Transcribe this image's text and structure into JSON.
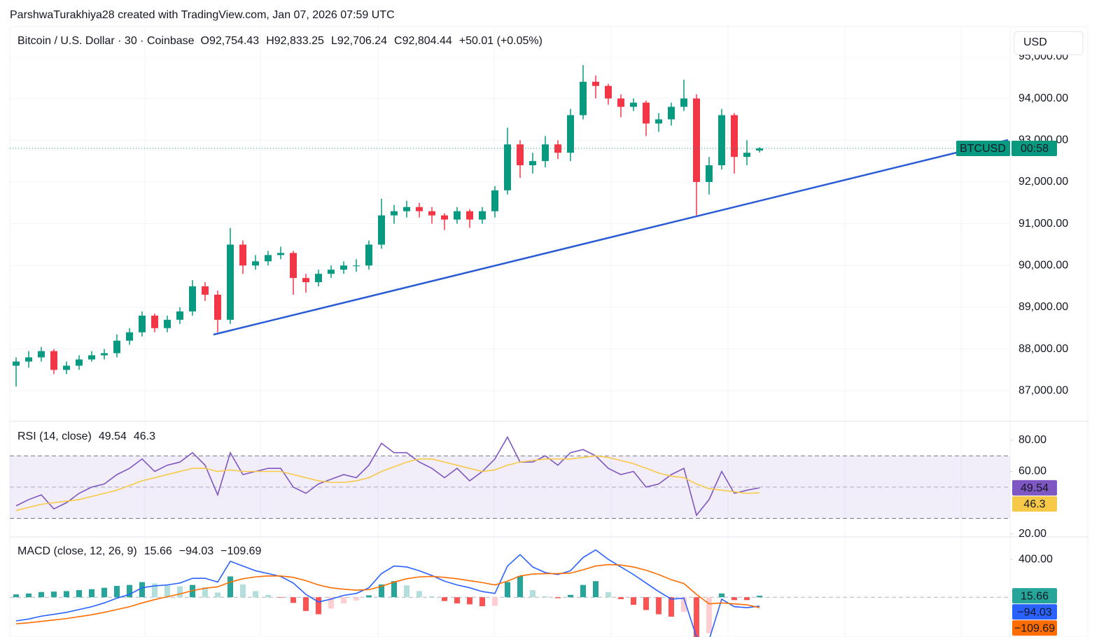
{
  "header": {
    "attribution": "ParshwaTurakhiya28 created with TradingView.com, Jan 07, 2026 07:59 UTC"
  },
  "chart_data": [
    {
      "type": "candlestick",
      "title": "Bitcoin / U.S. Dollar · 30 · Coinbase",
      "ohlc_legend": [
        {
          "prefix": "O",
          "label": "92,754.43"
        },
        {
          "prefix": "H",
          "label": "92,833.25"
        },
        {
          "prefix": "L",
          "label": "92,706.24"
        },
        {
          "prefix": "C",
          "label": "92,804.44"
        }
      ],
      "change_label": "+50.01 (+0.05%)",
      "currency": "USD",
      "symbol": "BTCUSD",
      "countdown": "00:58",
      "up_color": "#089981",
      "down_color": "#f23645",
      "trendline_color": "#2a5bd7",
      "open": [
        87600,
        87700,
        87800,
        87950,
        87500,
        87600,
        87750,
        87850,
        87900,
        88200,
        88400,
        88800,
        88500,
        88700,
        88900,
        89500,
        89300,
        88700,
        90500,
        90000,
        90100,
        90250,
        90300,
        89700,
        89600,
        89800,
        89900,
        90000,
        90000,
        90500,
        91200,
        91300,
        91400,
        91300,
        91200,
        91100,
        91300,
        91100,
        91300,
        91800,
        92900,
        92400,
        92500,
        92900,
        92700,
        93600,
        94400,
        94300,
        94000,
        93800,
        93900,
        93400,
        93500,
        93800,
        94000,
        92000,
        92400,
        93600,
        92600,
        92754.43
      ],
      "high": [
        87800,
        87950,
        88050,
        88000,
        87700,
        87850,
        87950,
        88000,
        88350,
        88500,
        88900,
        88850,
        88800,
        89000,
        89650,
        89600,
        89400,
        90900,
        90600,
        90250,
        90350,
        90450,
        90350,
        89800,
        89900,
        90000,
        90100,
        90150,
        90600,
        91600,
        91450,
        91550,
        91500,
        91400,
        91250,
        91400,
        91350,
        91400,
        91900,
        93300,
        93000,
        92700,
        93100,
        93000,
        93750,
        94800,
        94550,
        94350,
        94100,
        94000,
        93950,
        93650,
        93900,
        94450,
        94100,
        92600,
        93750,
        93650,
        93000,
        92833.25
      ],
      "low": [
        87100,
        87550,
        87700,
        87400,
        87400,
        87500,
        87700,
        87750,
        87800,
        88100,
        88300,
        88400,
        88400,
        88600,
        88800,
        89150,
        88400,
        88600,
        89800,
        89900,
        90000,
        90150,
        89300,
        89350,
        89500,
        89700,
        89800,
        89850,
        89900,
        90400,
        91000,
        91150,
        91150,
        91000,
        90850,
        91000,
        90900,
        91000,
        91150,
        91700,
        92100,
        92200,
        92350,
        92550,
        92500,
        93500,
        94000,
        93850,
        93550,
        93700,
        93100,
        93200,
        93350,
        93700,
        91200,
        91700,
        92300,
        92200,
        92400,
        92706.24
      ],
      "close": [
        87700,
        87800,
        87950,
        87500,
        87600,
        87750,
        87850,
        87900,
        88200,
        88400,
        88800,
        88500,
        88700,
        88900,
        89500,
        89300,
        88700,
        90500,
        90000,
        90100,
        90250,
        90300,
        89700,
        89600,
        89800,
        89900,
        90000,
        90000,
        90500,
        91200,
        91300,
        91400,
        91300,
        91200,
        91100,
        91300,
        91100,
        91300,
        91800,
        92900,
        92400,
        92500,
        92900,
        92700,
        93600,
        94400,
        94300,
        94000,
        93800,
        93900,
        93400,
        93500,
        93800,
        94000,
        92000,
        92400,
        93600,
        92600,
        92700,
        92804.44
      ],
      "ylim": [
        86300,
        95000
      ],
      "yticks": [
        {
          "value": 87000,
          "label": "87,000.00"
        },
        {
          "value": 88000,
          "label": "88,000.00"
        },
        {
          "value": 89000,
          "label": "89,000.00"
        },
        {
          "value": 90000,
          "label": "90,000.00"
        },
        {
          "value": 91000,
          "label": "91,000.00"
        },
        {
          "value": 92000,
          "label": "92,000.00"
        },
        {
          "value": 93000,
          "label": "93,000.00"
        },
        {
          "value": 94000,
          "label": "94,000.00"
        },
        {
          "value": 95000,
          "label": "95,000.00"
        }
      ],
      "grid": true
    },
    {
      "type": "line",
      "title": "RSI (14, close)",
      "levels": [
        30,
        50,
        70
      ],
      "band": [
        30,
        70
      ],
      "band_color": "#7e57c2",
      "series": [
        {
          "color": "#7e57c2",
          "values": [
            38,
            42,
            45,
            36,
            40,
            46,
            50,
            52,
            58,
            62,
            68,
            60,
            64,
            66,
            72,
            64,
            45,
            72,
            58,
            60,
            62,
            62,
            50,
            46,
            52,
            55,
            58,
            56,
            64,
            78,
            72,
            72,
            66,
            62,
            56,
            62,
            54,
            60,
            68,
            82,
            66,
            66,
            70,
            64,
            72,
            74,
            70,
            62,
            58,
            60,
            50,
            52,
            58,
            62,
            32,
            42,
            60,
            46,
            48,
            49.54
          ]
        },
        {
          "color": "#f7c948",
          "values": [
            35,
            37,
            39,
            40,
            41,
            42,
            44,
            46,
            48,
            51,
            54,
            56,
            58,
            60,
            62,
            62,
            60,
            61,
            60,
            60,
            60,
            60,
            58,
            56,
            54,
            53,
            53,
            54,
            56,
            60,
            63,
            66,
            68,
            68,
            66,
            64,
            62,
            60,
            61,
            64,
            66,
            67,
            68,
            68,
            68,
            69,
            70,
            69,
            67,
            65,
            62,
            59,
            57,
            56,
            52,
            49,
            48,
            47,
            46,
            46.3
          ]
        }
      ],
      "ylim": [
        19,
        91.6
      ],
      "yticks": [
        {
          "value": 20,
          "label": "20.00"
        },
        {
          "value": 60,
          "label": "60.00"
        },
        {
          "value": 80,
          "label": "80.00"
        }
      ]
    },
    {
      "type": "macd",
      "title": "MACD (close, 12, 26, 9)",
      "levels": [
        0
      ],
      "histogram": {
        "color": "#26a69a",
        "up_fade": "#b2dfdb",
        "down_color": "#ff5252",
        "down_fade": "#ffcdd2",
        "values": [
          30,
          40,
          55,
          60,
          65,
          75,
          85,
          100,
          120,
          130,
          160,
          145,
          125,
          115,
          130,
          105,
          50,
          220,
          135,
          65,
          25,
          -5,
          -60,
          -145,
          -180,
          -120,
          -65,
          -35,
          20,
          135,
          170,
          125,
          65,
          10,
          -40,
          -65,
          -75,
          -95,
          -90,
          160,
          225,
          75,
          10,
          -10,
          25,
          130,
          170,
          55,
          -20,
          -80,
          -135,
          -180,
          -205,
          -155,
          -450,
          -380,
          40,
          -30,
          -30,
          15.66
        ]
      },
      "series": [
        {
          "color": "#2962ff",
          "last_value_label": "−94.03",
          "values": [
            -250,
            -230,
            -200,
            -180,
            -160,
            -130,
            -100,
            -60,
            -10,
            30,
            100,
            120,
            130,
            150,
            200,
            200,
            160,
            380,
            330,
            280,
            250,
            220,
            150,
            30,
            -50,
            -20,
            20,
            40,
            100,
            250,
            330,
            320,
            280,
            230,
            170,
            130,
            100,
            60,
            40,
            330,
            450,
            320,
            260,
            240,
            280,
            420,
            500,
            400,
            320,
            240,
            150,
            60,
            -20,
            -10,
            -420,
            -450,
            -20,
            -100,
            -110,
            -94.03
          ]
        },
        {
          "color": "#ff6d00",
          "last_value_label": "−109.69",
          "values": [
            -280,
            -270,
            -255,
            -240,
            -225,
            -205,
            -185,
            -160,
            -130,
            -100,
            -60,
            -25,
            5,
            35,
            70,
            95,
            110,
            160,
            195,
            215,
            225,
            225,
            210,
            175,
            130,
            100,
            85,
            75,
            80,
            115,
            160,
            195,
            215,
            220,
            210,
            195,
            175,
            155,
            130,
            170,
            225,
            245,
            250,
            250,
            255,
            290,
            330,
            345,
            340,
            320,
            285,
            240,
            185,
            145,
            30,
            -70,
            -60,
            -70,
            -80,
            -109.69
          ]
        }
      ],
      "ylim": [
        -420,
        630
      ],
      "yticks": [
        {
          "value": 400,
          "label": "400.00"
        }
      ]
    }
  ]
}
